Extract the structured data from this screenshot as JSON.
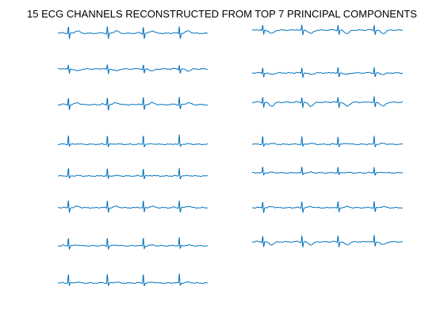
{
  "figure": {
    "title": "15 ECG CHANNELS RECONSTRUCTED FROM TOP 7 PRINCIPAL COMPONENTS",
    "background": "#ffffff"
  },
  "chart_data": {
    "type": "line",
    "title": "15 ECG CHANNELS RECONSTRUCTED FROM TOP 7 PRINCIPAL COMPONENTS",
    "xlabel": "",
    "ylabel": "",
    "axes_visible": false,
    "grid": false,
    "line_color": "#0072bd",
    "layout": "two columns of small multiples: 8 channels on the left, 7 on the right",
    "beats_per_trace": 4,
    "beat_phases": [
      0.07,
      0.33,
      0.57,
      0.81
    ],
    "channels": [
      {
        "column": "left",
        "row": 1,
        "shape": {
          "q": 0.1,
          "r": 0.75,
          "s": -0.6,
          "t": 0.25,
          "p": 0.08
        }
      },
      {
        "column": "left",
        "row": 2,
        "shape": {
          "q": 0.1,
          "r": 0.45,
          "s": -0.5,
          "t": -0.2,
          "p": 0.05
        }
      },
      {
        "column": "left",
        "row": 3,
        "shape": {
          "q": 0.1,
          "r": 0.8,
          "s": -0.55,
          "t": 0.2,
          "p": 0.08
        }
      },
      {
        "column": "left",
        "row": 4,
        "shape": {
          "q": 0.05,
          "r": 1.0,
          "s": -0.25,
          "t": 0.05,
          "p": 0.04
        }
      },
      {
        "column": "left",
        "row": 5,
        "shape": {
          "q": 0.05,
          "r": 0.85,
          "s": -0.3,
          "t": 0.05,
          "p": 0.04
        }
      },
      {
        "column": "left",
        "row": 6,
        "shape": {
          "q": 0.1,
          "r": 0.8,
          "s": -0.5,
          "t": 0.15,
          "p": 0.06
        }
      },
      {
        "column": "left",
        "row": 7,
        "shape": {
          "q": 0.05,
          "r": 0.9,
          "s": -0.35,
          "t": 0.08,
          "p": 0.05
        }
      },
      {
        "column": "left",
        "row": 8,
        "shape": {
          "q": 0.05,
          "r": 1.0,
          "s": -0.3,
          "t": 0.1,
          "p": 0.05
        }
      },
      {
        "column": "right",
        "row": 1,
        "shape": {
          "q": 0.1,
          "r": 0.55,
          "s": -0.5,
          "t": -0.35,
          "p": 0.05
        }
      },
      {
        "column": "right",
        "row": 2,
        "shape": {
          "q": 0.1,
          "r": 0.6,
          "s": -0.45,
          "t": -0.15,
          "p": 0.05
        }
      },
      {
        "column": "right",
        "row": 3,
        "shape": {
          "q": 0.1,
          "r": 0.6,
          "s": -0.55,
          "t": -0.4,
          "p": 0.05
        }
      },
      {
        "column": "right",
        "row": 4,
        "shape": {
          "q": 0.05,
          "r": 0.9,
          "s": -0.25,
          "t": 0.1,
          "p": 0.04
        }
      },
      {
        "column": "right",
        "row": 5,
        "shape": {
          "q": 0.05,
          "r": 0.65,
          "s": -0.25,
          "t": 0.05,
          "p": 0.03
        }
      },
      {
        "column": "right",
        "row": 6,
        "shape": {
          "q": 0.1,
          "r": 0.7,
          "s": -0.5,
          "t": 0.12,
          "p": 0.05
        }
      },
      {
        "column": "right",
        "row": 7,
        "shape": {
          "q": 0.1,
          "r": 0.7,
          "s": -0.55,
          "t": -0.3,
          "p": 0.05
        }
      }
    ]
  }
}
